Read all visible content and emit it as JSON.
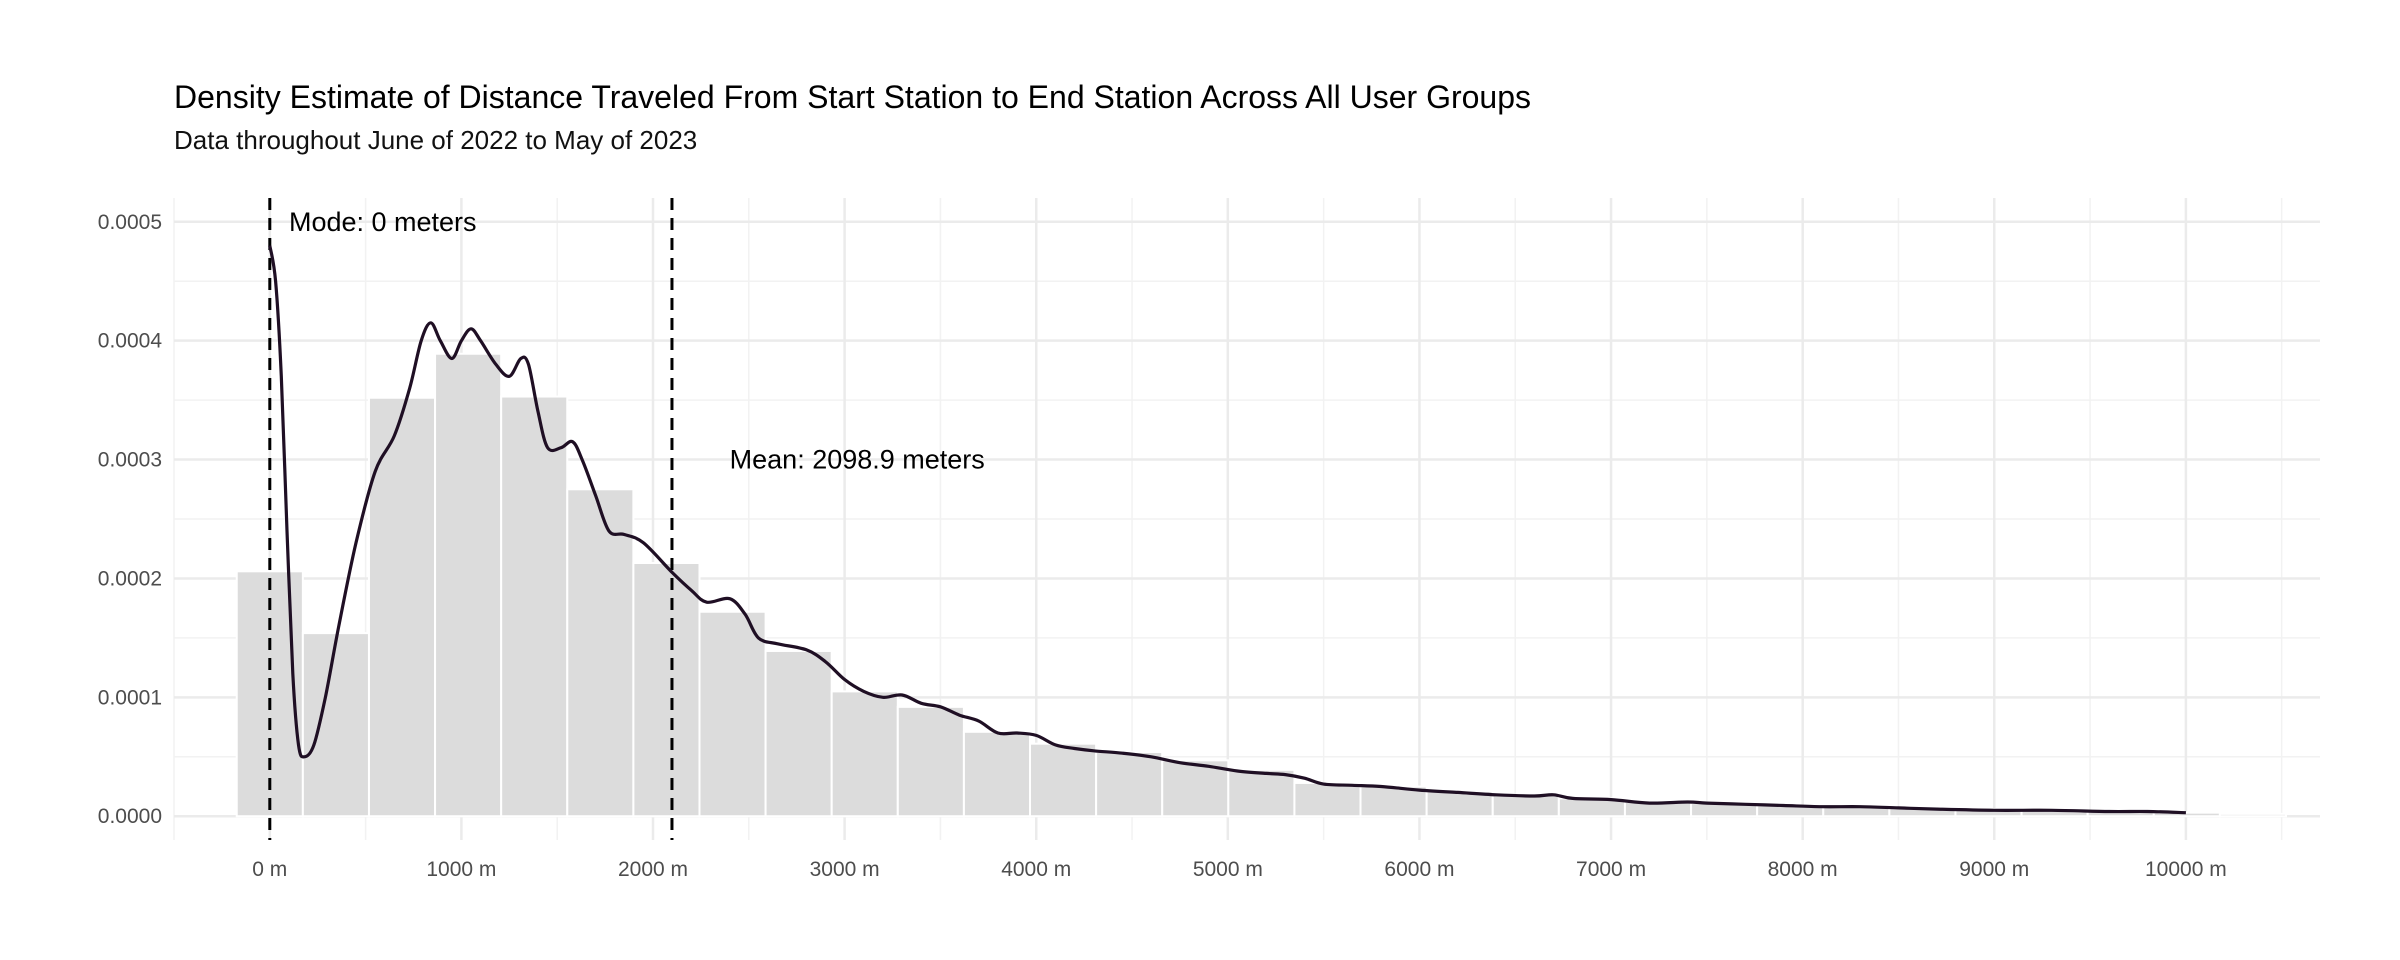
{
  "chart_data": {
    "type": "bar",
    "title": "Density Estimate of Distance Traveled From Start Station to End Station Across All User Groups",
    "subtitle": "Data throughout June of 2022 to May of 2023",
    "xlabel": "",
    "ylabel": "",
    "xlim": [
      -500,
      10700
    ],
    "ylim": [
      -2e-05,
      0.00052
    ],
    "x_ticks": [
      {
        "value": 0,
        "label": "0 m"
      },
      {
        "value": 1000,
        "label": "1000 m"
      },
      {
        "value": 2000,
        "label": "2000 m"
      },
      {
        "value": 3000,
        "label": "3000 m"
      },
      {
        "value": 4000,
        "label": "4000 m"
      },
      {
        "value": 5000,
        "label": "5000 m"
      },
      {
        "value": 6000,
        "label": "6000 m"
      },
      {
        "value": 7000,
        "label": "7000 m"
      },
      {
        "value": 8000,
        "label": "8000 m"
      },
      {
        "value": 9000,
        "label": "9000 m"
      },
      {
        "value": 10000,
        "label": "10000 m"
      }
    ],
    "y_ticks": [
      {
        "value": 0.0,
        "label": "0.0000"
      },
      {
        "value": 0.0001,
        "label": "0.0001"
      },
      {
        "value": 0.0002,
        "label": "0.0002"
      },
      {
        "value": 0.0003,
        "label": "0.0003"
      },
      {
        "value": 0.0004,
        "label": "0.0004"
      },
      {
        "value": 0.0005,
        "label": "0.0005"
      }
    ],
    "histogram": {
      "bin_width": 345,
      "bin_centers": [
        0,
        345,
        690,
        1035,
        1380,
        1725,
        2070,
        2415,
        2760,
        3105,
        3450,
        3795,
        4140,
        4485,
        4830,
        5175,
        5520,
        5865,
        6210,
        6555,
        6900,
        7245,
        7590,
        7935,
        8280,
        8625,
        8970,
        9315,
        9660,
        10005,
        10350
      ],
      "values": [
        0.000206,
        0.000154,
        0.000352,
        0.000389,
        0.000353,
        0.000275,
        0.000213,
        0.000172,
        0.000139,
        0.000105,
        9.2e-05,
        7.1e-05,
        6.1e-05,
        5.4e-05,
        4.7e-05,
        3.9e-05,
        2.8e-05,
        2.5e-05,
        2.1e-05,
        1.8e-05,
        1.5e-05,
        1.2e-05,
        1.1e-05,
        9e-06,
        8e-06,
        7e-06,
        6e-06,
        5e-06,
        4e-06,
        3e-06,
        2e-06
      ],
      "color": "#dcdcdc"
    },
    "density_curve": {
      "color": "#1f0f24",
      "points": [
        [
          0,
          0.00048
        ],
        [
          30,
          0.00045
        ],
        [
          60,
          0.00037
        ],
        [
          90,
          0.00024
        ],
        [
          120,
          0.00012
        ],
        [
          150,
          6e-05
        ],
        [
          180,
          5e-05
        ],
        [
          230,
          6e-05
        ],
        [
          290,
          0.0001
        ],
        [
          360,
          0.00016
        ],
        [
          450,
          0.00023
        ],
        [
          550,
          0.00029
        ],
        [
          650,
          0.00032
        ],
        [
          730,
          0.00036
        ],
        [
          790,
          0.0004
        ],
        [
          840,
          0.000415
        ],
        [
          890,
          0.0004
        ],
        [
          950,
          0.000385
        ],
        [
          1000,
          0.0004
        ],
        [
          1050,
          0.00041
        ],
        [
          1100,
          0.0004
        ],
        [
          1180,
          0.00038
        ],
        [
          1250,
          0.00037
        ],
        [
          1310,
          0.000385
        ],
        [
          1350,
          0.00038
        ],
        [
          1400,
          0.00034
        ],
        [
          1450,
          0.00031
        ],
        [
          1520,
          0.00031
        ],
        [
          1580,
          0.000315
        ],
        [
          1630,
          0.0003
        ],
        [
          1700,
          0.00027
        ],
        [
          1770,
          0.00024
        ],
        [
          1850,
          0.000237
        ],
        [
          1950,
          0.00023
        ],
        [
          2100,
          0.000205
        ],
        [
          2200,
          0.00019
        ],
        [
          2280,
          0.00018
        ],
        [
          2400,
          0.000183
        ],
        [
          2480,
          0.00017
        ],
        [
          2550,
          0.00015
        ],
        [
          2650,
          0.000145
        ],
        [
          2800,
          0.00014
        ],
        [
          2900,
          0.00013
        ],
        [
          3000,
          0.000115
        ],
        [
          3100,
          0.000105
        ],
        [
          3200,
          0.0001
        ],
        [
          3300,
          0.000102
        ],
        [
          3400,
          9.5e-05
        ],
        [
          3500,
          9.2e-05
        ],
        [
          3600,
          8.5e-05
        ],
        [
          3700,
          8e-05
        ],
        [
          3800,
          7e-05
        ],
        [
          3900,
          7e-05
        ],
        [
          4000,
          6.8e-05
        ],
        [
          4100,
          6e-05
        ],
        [
          4200,
          5.7e-05
        ],
        [
          4300,
          5.5e-05
        ],
        [
          4450,
          5.3e-05
        ],
        [
          4600,
          5e-05
        ],
        [
          4750,
          4.5e-05
        ],
        [
          4900,
          4.2e-05
        ],
        [
          5050,
          3.8e-05
        ],
        [
          5200,
          3.6e-05
        ],
        [
          5300,
          3.5e-05
        ],
        [
          5400,
          3.2e-05
        ],
        [
          5500,
          2.7e-05
        ],
        [
          5650,
          2.6e-05
        ],
        [
          5800,
          2.5e-05
        ],
        [
          6000,
          2.2e-05
        ],
        [
          6200,
          2e-05
        ],
        [
          6400,
          1.8e-05
        ],
        [
          6600,
          1.7e-05
        ],
        [
          6700,
          1.8e-05
        ],
        [
          6800,
          1.5e-05
        ],
        [
          7000,
          1.4e-05
        ],
        [
          7200,
          1.1e-05
        ],
        [
          7400,
          1.2e-05
        ],
        [
          7500,
          1.1e-05
        ],
        [
          7700,
          1e-05
        ],
        [
          7900,
          9e-06
        ],
        [
          8100,
          8e-06
        ],
        [
          8300,
          8e-06
        ],
        [
          8500,
          7e-06
        ],
        [
          8700,
          6e-06
        ],
        [
          9000,
          5e-06
        ],
        [
          9300,
          5e-06
        ],
        [
          9600,
          4e-06
        ],
        [
          9800,
          4e-06
        ],
        [
          10000,
          3e-06
        ]
      ]
    },
    "reference_lines": [
      {
        "x": 0,
        "label": "Mode: 0 meters",
        "label_x": 100,
        "label_y": 0.0005
      },
      {
        "x": 2098.9,
        "label": "Mean: 2098.9 meters",
        "label_x": 2400,
        "label_y": 0.0003
      }
    ],
    "grid": true,
    "legend": "none"
  }
}
